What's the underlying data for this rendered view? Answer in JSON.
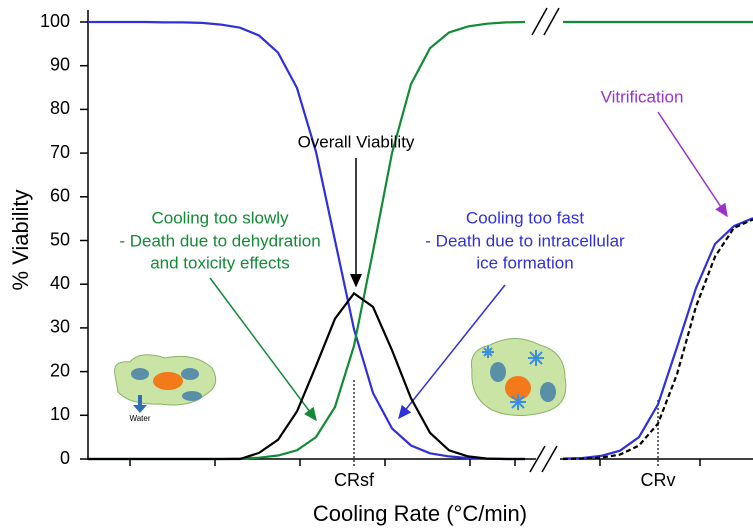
{
  "chart_data": {
    "type": "line",
    "x_label": "Cooling Rate (°C/min)",
    "y_label": "% Viability",
    "categories": [
      null,
      null,
      null,
      null,
      null,
      null,
      null,
      null,
      null,
      null,
      null,
      null,
      null,
      null,
      "CRsf",
      null,
      null,
      null,
      null,
      null,
      null,
      null,
      null,
      null,
      null,
      null,
      null,
      null,
      null,
      null,
      "CRv",
      null,
      null,
      null,
      null,
      null
    ],
    "ylim": [
      0,
      100
    ],
    "yticks": [
      0,
      10,
      20,
      30,
      40,
      50,
      60,
      70,
      80,
      90,
      100
    ],
    "series": [
      {
        "color": "#3030d8",
        "values": [
          100,
          100,
          100,
          100,
          99.9,
          99.9,
          99.8,
          99.4,
          98.7,
          96.9,
          93,
          84.9,
          70.3,
          50,
          29.7,
          15.1,
          7,
          3.1,
          1.3,
          0.6,
          0.2,
          0.1,
          0,
          0,
          null,
          0.1,
          0.2,
          0.7,
          1.9,
          5,
          12.5,
          25.6,
          39.1,
          49.2,
          53.3,
          55.1
        ]
      },
      {
        "color": "#138a36",
        "values": [
          0,
          0,
          0,
          0,
          0,
          0,
          0,
          0,
          0.1,
          0.3,
          0.8,
          2,
          5,
          11.9,
          25.9,
          47.5,
          70,
          85.8,
          94,
          97.6,
          99,
          99.6,
          99.9,
          100,
          null,
          100,
          100,
          100,
          100,
          100,
          100,
          100,
          100,
          100,
          100,
          100
        ]
      },
      {
        "color": "#000000",
        "values": [
          0,
          0,
          0,
          0,
          0,
          0,
          0,
          0,
          0,
          1.4,
          4.4,
          10.9,
          21.3,
          32.1,
          37.9,
          34.8,
          24.9,
          13.9,
          6,
          2,
          0.6,
          0.1,
          0,
          0,
          null,
          null,
          null,
          null,
          null,
          null,
          null,
          null,
          null,
          null,
          null,
          null
        ]
      },
      {
        "color": "#000000",
        "line_style": "dashed",
        "values": [
          null,
          null,
          null,
          null,
          null,
          null,
          null,
          null,
          null,
          null,
          null,
          null,
          null,
          null,
          null,
          null,
          null,
          null,
          null,
          null,
          null,
          null,
          null,
          null,
          null,
          0,
          0.1,
          0.3,
          1,
          3.1,
          8.1,
          19.4,
          34.9,
          46.3,
          52.9,
          54.8
        ]
      }
    ],
    "annotations": [
      {
        "text": "Overall Viability",
        "color": "#000000"
      },
      {
        "text": "Cooling too slowly",
        "color": "#138a36"
      },
      {
        "text": "- Death due to dehydration",
        "color": "#138a36"
      },
      {
        "text": "and toxicity effects",
        "color": "#138a36"
      },
      {
        "text": "Cooling too fast",
        "color": "#3030d8"
      },
      {
        "text": "- Death due to intracellular",
        "color": "#3030d8"
      },
      {
        "text": "ice formation",
        "color": "#3030d8"
      },
      {
        "text": "Vitrification",
        "color": "#9933cc"
      },
      {
        "text": "Water",
        "color": "#000000"
      }
    ]
  }
}
